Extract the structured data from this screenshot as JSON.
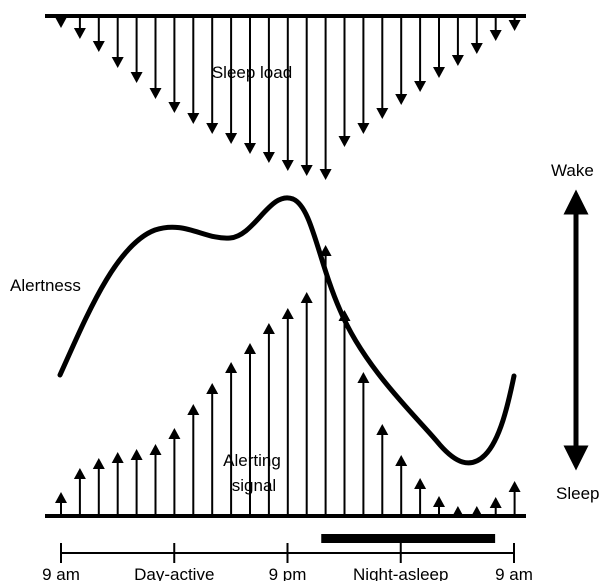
{
  "labels": {
    "sleep_load": "Sleep load",
    "alertness": "Alertness",
    "alerting_line1": "Alerting",
    "alerting_line2": "signal",
    "wake": "Wake",
    "sleep": "Sleep"
  },
  "time_axis": {
    "ticks": [
      {
        "hour": 0,
        "label": "9 am"
      },
      {
        "hour": 6,
        "label": "Day-active"
      },
      {
        "hour": 12,
        "label": "9 pm"
      },
      {
        "hour": 18,
        "label": "Night-asleep"
      },
      {
        "hour": 24,
        "label": "9 am"
      }
    ],
    "sleep_period_hours": [
      14,
      23
    ]
  },
  "colors": {
    "ink": "#000000",
    "background": "#ffffff"
  },
  "icons": {
    "wake_sleep_arrow": "double-headed-vertical-arrow-icon"
  }
}
